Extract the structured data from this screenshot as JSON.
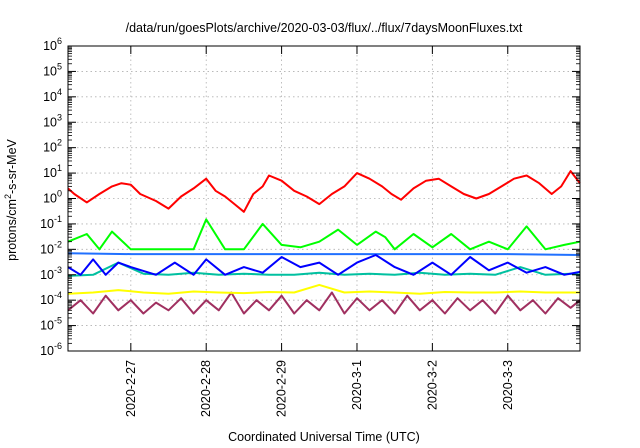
{
  "chart_data": {
    "type": "line",
    "title": "/data/run/goesPlots/archive/2020-03-03/flux/../flux/7daysMoonFluxes.txt",
    "xlabel": "Coordinated Universal Time (UTC)",
    "ylabel": "protons/cm²-s-sr-MeV",
    "yscale": "log",
    "ylim": [
      1e-06,
      1000000
    ],
    "ytick_exponents": [
      "6",
      "5",
      "4",
      "3",
      "2",
      "1",
      "0",
      "-1",
      "-2",
      "-3",
      "-4",
      "-5",
      "-6"
    ],
    "xlim": [
      "2020-02-26T04:00",
      "2020-03-03T23:00"
    ],
    "xticks": [
      {
        "date": "2020-02-27",
        "label": "2020-2-27"
      },
      {
        "date": "2020-02-28",
        "label": "2020-2-28"
      },
      {
        "date": "2020-02-29",
        "label": "2020-2-29"
      },
      {
        "date": "2020-03-01",
        "label": "2020-3-1"
      },
      {
        "date": "2020-03-02",
        "label": "2020-3-2"
      },
      {
        "date": "2020-03-03",
        "label": "2020-3-3"
      }
    ],
    "grid": true,
    "legend": "none",
    "series": [
      {
        "color": "#ff0000",
        "x": [
          "2020-02-26T04:00",
          "2020-02-26T06:00",
          "2020-02-26T10:00",
          "2020-02-26T14:00",
          "2020-02-26T18:00",
          "2020-02-26T21:00",
          "2020-02-27T00:00",
          "2020-02-27T03:00",
          "2020-02-27T08:00",
          "2020-02-27T12:00",
          "2020-02-27T16:00",
          "2020-02-27T20:00",
          "2020-02-28T00:00",
          "2020-02-28T03:00",
          "2020-02-28T06:00",
          "2020-02-28T09:00",
          "2020-02-28T12:00",
          "2020-02-28T15:00",
          "2020-02-28T18:00",
          "2020-02-28T20:00",
          "2020-02-29T00:00",
          "2020-02-29T04:00",
          "2020-02-29T08:00",
          "2020-02-29T12:00",
          "2020-02-29T16:00",
          "2020-02-29T20:00",
          "2020-03-01T00:00",
          "2020-03-01T04:00",
          "2020-03-01T08:00",
          "2020-03-01T11:00",
          "2020-03-01T14:00",
          "2020-03-01T18:00",
          "2020-03-01T22:00",
          "2020-03-02T02:00",
          "2020-03-02T06:00",
          "2020-03-02T10:00",
          "2020-03-02T14:00",
          "2020-03-02T18:00",
          "2020-03-02T22:00",
          "2020-03-03T02:00",
          "2020-03-03T06:00",
          "2020-03-03T10:00",
          "2020-03-03T14:00",
          "2020-03-03T17:00",
          "2020-03-03T20:00",
          "2020-03-03T23:00"
        ],
        "y": [
          2.5,
          1.5,
          0.7,
          1.5,
          3,
          4,
          3.5,
          1.5,
          0.8,
          0.4,
          1.2,
          2.5,
          6,
          2,
          1.2,
          0.6,
          0.3,
          1.5,
          3,
          8,
          5,
          2,
          1.2,
          0.6,
          1.5,
          3,
          10,
          6,
          3,
          1.5,
          0.9,
          2.5,
          5,
          6,
          3,
          1.5,
          1,
          1.5,
          3,
          6,
          8,
          4,
          1.5,
          3,
          12,
          4
        ]
      },
      {
        "color": "#00ff00",
        "x": [
          "2020-02-26T04:00",
          "2020-02-26T10:00",
          "2020-02-26T14:00",
          "2020-02-26T18:00",
          "2020-02-27T00:00",
          "2020-02-27T12:00",
          "2020-02-27T20:00",
          "2020-02-28T00:00",
          "2020-02-28T06:00",
          "2020-02-28T12:00",
          "2020-02-28T18:00",
          "2020-02-29T00:00",
          "2020-02-29T06:00",
          "2020-02-29T12:00",
          "2020-02-29T18:00",
          "2020-03-01T00:00",
          "2020-03-01T06:00",
          "2020-03-01T09:00",
          "2020-03-01T12:00",
          "2020-03-01T18:00",
          "2020-03-02T00:00",
          "2020-03-02T06:00",
          "2020-03-02T12:00",
          "2020-03-02T18:00",
          "2020-03-03T00:00",
          "2020-03-03T06:00",
          "2020-03-03T12:00",
          "2020-03-03T18:00",
          "2020-03-03T23:00"
        ],
        "y": [
          0.02,
          0.04,
          0.01,
          0.05,
          0.01,
          0.01,
          0.01,
          0.15,
          0.01,
          0.01,
          0.1,
          0.015,
          0.012,
          0.02,
          0.06,
          0.015,
          0.05,
          0.03,
          0.01,
          0.04,
          0.012,
          0.04,
          0.01,
          0.02,
          0.01,
          0.08,
          0.01,
          0.015,
          0.02
        ]
      },
      {
        "color": "#0000ff",
        "x": [
          "2020-02-26T04:00",
          "2020-02-26T08:00",
          "2020-02-26T12:00",
          "2020-02-26T16:00",
          "2020-02-26T20:00",
          "2020-02-27T00:00",
          "2020-02-27T08:00",
          "2020-02-27T14:00",
          "2020-02-27T20:00",
          "2020-02-28T00:00",
          "2020-02-28T06:00",
          "2020-02-28T12:00",
          "2020-02-28T18:00",
          "2020-02-29T00:00",
          "2020-02-29T06:00",
          "2020-02-29T12:00",
          "2020-02-29T18:00",
          "2020-03-01T00:00",
          "2020-03-01T06:00",
          "2020-03-01T12:00",
          "2020-03-01T18:00",
          "2020-03-02T00:00",
          "2020-03-02T06:00",
          "2020-03-02T12:00",
          "2020-03-02T18:00",
          "2020-03-03T00:00",
          "2020-03-03T06:00",
          "2020-03-03T12:00",
          "2020-03-03T18:00",
          "2020-03-03T23:00"
        ],
        "y": [
          0.002,
          0.001,
          0.004,
          0.001,
          0.003,
          0.002,
          0.001,
          0.003,
          0.001,
          0.004,
          0.001,
          0.002,
          0.0012,
          0.005,
          0.002,
          0.003,
          0.001,
          0.003,
          0.006,
          0.002,
          0.001,
          0.003,
          0.001,
          0.005,
          0.0015,
          0.003,
          0.0012,
          0.002,
          0.001,
          0.0013
        ]
      },
      {
        "color": "#2070ff",
        "x": [
          "2020-02-26T04:00",
          "2020-02-27T00:00",
          "2020-02-28T00:00",
          "2020-02-29T00:00",
          "2020-03-01T00:00",
          "2020-03-02T00:00",
          "2020-03-03T00:00",
          "2020-03-03T23:00"
        ],
        "y": [
          0.007,
          0.0065,
          0.0065,
          0.0065,
          0.0065,
          0.0065,
          0.0065,
          0.006
        ]
      },
      {
        "color": "#00c0a0",
        "x": [
          "2020-02-26T04:00",
          "2020-02-26T12:00",
          "2020-02-26T20:00",
          "2020-02-27T04:00",
          "2020-02-27T12:00",
          "2020-02-27T20:00",
          "2020-02-28T04:00",
          "2020-02-28T12:00",
          "2020-02-28T20:00",
          "2020-02-29T04:00",
          "2020-02-29T12:00",
          "2020-02-29T20:00",
          "2020-03-01T04:00",
          "2020-03-01T12:00",
          "2020-03-01T20:00",
          "2020-03-02T04:00",
          "2020-03-02T12:00",
          "2020-03-02T20:00",
          "2020-03-03T04:00",
          "2020-03-03T12:00",
          "2020-03-03T20:00",
          "2020-03-03T23:00"
        ],
        "y": [
          0.0009,
          0.001,
          0.003,
          0.0011,
          0.001,
          0.0012,
          0.001,
          0.0011,
          0.001,
          0.001,
          0.0012,
          0.001,
          0.0011,
          0.001,
          0.0012,
          0.001,
          0.0011,
          0.001,
          0.002,
          0.001,
          0.0011,
          0.001
        ]
      },
      {
        "color": "#ffff00",
        "x": [
          "2020-02-26T04:00",
          "2020-02-26T12:00",
          "2020-02-26T20:00",
          "2020-02-27T04:00",
          "2020-02-27T12:00",
          "2020-02-27T20:00",
          "2020-02-28T04:00",
          "2020-02-28T12:00",
          "2020-02-28T20:00",
          "2020-02-29T04:00",
          "2020-02-29T12:00",
          "2020-02-29T20:00",
          "2020-03-01T04:00",
          "2020-03-01T12:00",
          "2020-03-01T20:00",
          "2020-03-02T04:00",
          "2020-03-02T12:00",
          "2020-03-02T20:00",
          "2020-03-03T04:00",
          "2020-03-03T12:00",
          "2020-03-03T20:00",
          "2020-03-03T23:00"
        ],
        "y": [
          0.00018,
          0.0002,
          0.00025,
          0.0002,
          0.00018,
          0.00022,
          0.0002,
          0.00019,
          0.00021,
          0.0002,
          0.0004,
          0.0002,
          0.00022,
          0.0002,
          0.00018,
          0.00021,
          0.0002,
          0.0002,
          0.00022,
          0.0002,
          0.0002,
          0.0002
        ]
      },
      {
        "color": "#a03060",
        "x": [
          "2020-02-26T04:00",
          "2020-02-26T08:00",
          "2020-02-26T12:00",
          "2020-02-26T16:00",
          "2020-02-26T20:00",
          "2020-02-27T00:00",
          "2020-02-27T04:00",
          "2020-02-27T08:00",
          "2020-02-27T12:00",
          "2020-02-27T16:00",
          "2020-02-27T20:00",
          "2020-02-28T00:00",
          "2020-02-28T04:00",
          "2020-02-28T08:00",
          "2020-02-28T12:00",
          "2020-02-28T16:00",
          "2020-02-28T20:00",
          "2020-02-29T00:00",
          "2020-02-29T04:00",
          "2020-02-29T08:00",
          "2020-02-29T12:00",
          "2020-02-29T16:00",
          "2020-02-29T20:00",
          "2020-03-01T00:00",
          "2020-03-01T04:00",
          "2020-03-01T08:00",
          "2020-03-01T12:00",
          "2020-03-01T16:00",
          "2020-03-01T20:00",
          "2020-03-02T00:00",
          "2020-03-02T04:00",
          "2020-03-02T08:00",
          "2020-03-02T12:00",
          "2020-03-02T16:00",
          "2020-03-02T20:00",
          "2020-03-03T00:00",
          "2020-03-03T04:00",
          "2020-03-03T08:00",
          "2020-03-03T12:00",
          "2020-03-03T16:00",
          "2020-03-03T20:00",
          "2020-03-03T23:00"
        ],
        "y": [
          4e-05,
          0.0001,
          3e-05,
          0.00015,
          4e-05,
          0.0001,
          3e-05,
          8e-05,
          4e-05,
          0.00012,
          3e-05,
          0.0001,
          4e-05,
          0.0002,
          3e-05,
          0.0001,
          4e-05,
          0.00015,
          3e-05,
          0.0001,
          4e-05,
          0.0002,
          3e-05,
          0.00012,
          4e-05,
          0.0001,
          3e-05,
          0.00015,
          4e-05,
          0.0001,
          3e-05,
          0.00012,
          4e-05,
          0.0001,
          3e-05,
          0.00015,
          4e-05,
          0.0001,
          3e-05,
          0.00012,
          5e-05,
          0.0001
        ]
      }
    ]
  }
}
